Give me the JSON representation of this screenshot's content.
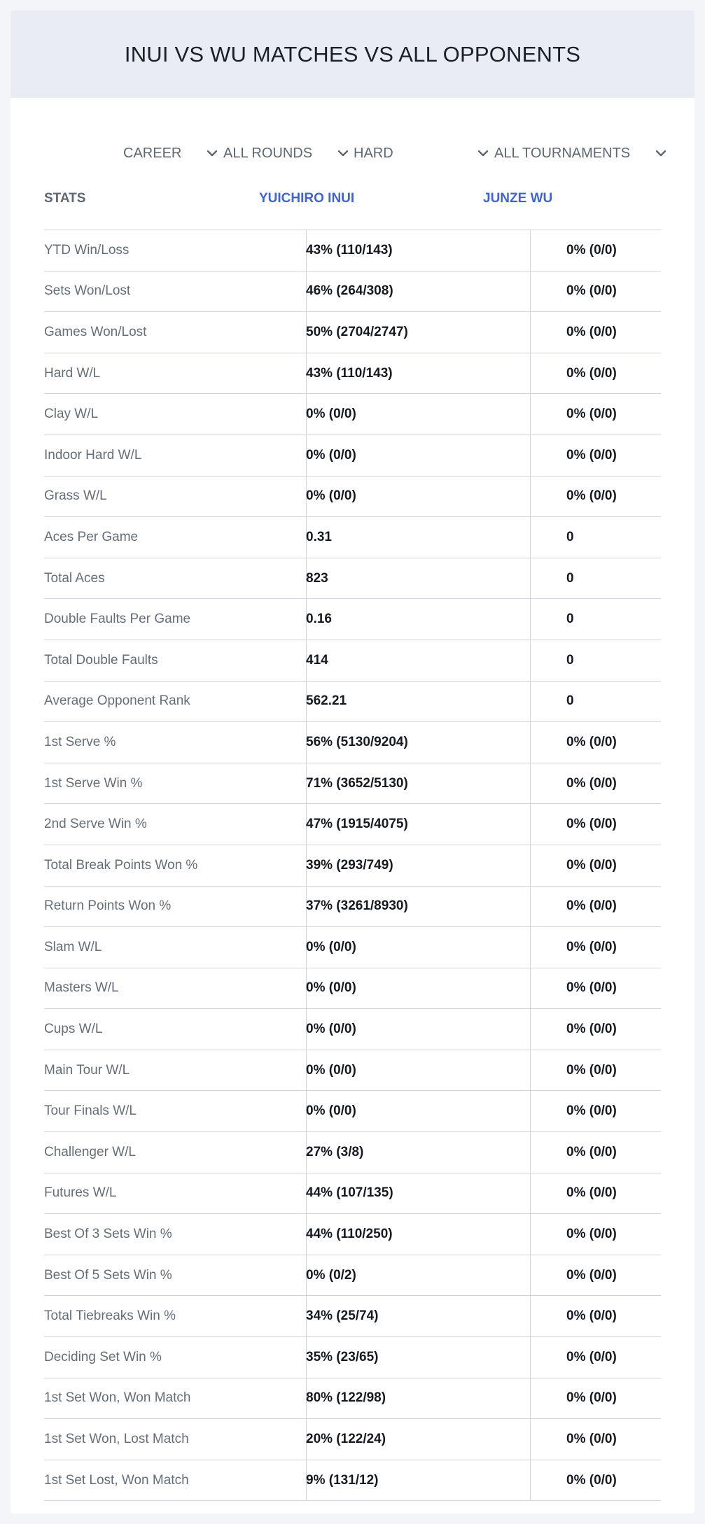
{
  "title": "INUI VS WU MATCHES VS ALL OPPONENTS",
  "filters": [
    {
      "id": "period",
      "value": "CAREER"
    },
    {
      "id": "rounds",
      "value": "ALL ROUNDS"
    },
    {
      "id": "surface",
      "value": "HARD"
    },
    {
      "id": "tournaments",
      "value": "ALL TOURNAMENTS"
    }
  ],
  "table": {
    "headers": {
      "stats": "STATS",
      "player1": "YUICHIRO INUI",
      "player2": "JUNZE WU"
    },
    "rows": [
      {
        "label": "YTD Win/Loss",
        "p1": "43% (110/143)",
        "p2": "0% (0/0)"
      },
      {
        "label": "Sets Won/Lost",
        "p1": "46% (264/308)",
        "p2": "0% (0/0)"
      },
      {
        "label": "Games Won/Lost",
        "p1": "50% (2704/2747)",
        "p2": "0% (0/0)"
      },
      {
        "label": "Hard W/L",
        "p1": "43% (110/143)",
        "p2": "0% (0/0)"
      },
      {
        "label": "Clay W/L",
        "p1": "0% (0/0)",
        "p2": "0% (0/0)"
      },
      {
        "label": "Indoor Hard W/L",
        "p1": "0% (0/0)",
        "p2": "0% (0/0)"
      },
      {
        "label": "Grass W/L",
        "p1": "0% (0/0)",
        "p2": "0% (0/0)"
      },
      {
        "label": "Aces Per Game",
        "p1": "0.31",
        "p2": "0"
      },
      {
        "label": "Total Aces",
        "p1": "823",
        "p2": "0"
      },
      {
        "label": "Double Faults Per Game",
        "p1": "0.16",
        "p2": "0"
      },
      {
        "label": "Total Double Faults",
        "p1": "414",
        "p2": "0"
      },
      {
        "label": "Average Opponent Rank",
        "p1": "562.21",
        "p2": "0"
      },
      {
        "label": "1st Serve %",
        "p1": "56% (5130/9204)",
        "p2": "0% (0/0)"
      },
      {
        "label": "1st Serve Win %",
        "p1": "71% (3652/5130)",
        "p2": "0% (0/0)"
      },
      {
        "label": "2nd Serve Win %",
        "p1": "47% (1915/4075)",
        "p2": "0% (0/0)"
      },
      {
        "label": "Total Break Points Won %",
        "p1": "39% (293/749)",
        "p2": "0% (0/0)"
      },
      {
        "label": "Return Points Won %",
        "p1": "37% (3261/8930)",
        "p2": "0% (0/0)"
      },
      {
        "label": "Slam W/L",
        "p1": "0% (0/0)",
        "p2": "0% (0/0)"
      },
      {
        "label": "Masters W/L",
        "p1": "0% (0/0)",
        "p2": "0% (0/0)"
      },
      {
        "label": "Cups W/L",
        "p1": "0% (0/0)",
        "p2": "0% (0/0)"
      },
      {
        "label": "Main Tour W/L",
        "p1": "0% (0/0)",
        "p2": "0% (0/0)"
      },
      {
        "label": "Tour Finals W/L",
        "p1": "0% (0/0)",
        "p2": "0% (0/0)"
      },
      {
        "label": "Challenger W/L",
        "p1": "27% (3/8)",
        "p2": "0% (0/0)"
      },
      {
        "label": "Futures W/L",
        "p1": "44% (107/135)",
        "p2": "0% (0/0)"
      },
      {
        "label": "Best Of 3 Sets Win %",
        "p1": "44% (110/250)",
        "p2": "0% (0/0)"
      },
      {
        "label": "Best Of 5 Sets Win %",
        "p1": "0% (0/2)",
        "p2": "0% (0/0)"
      },
      {
        "label": "Total Tiebreaks Win %",
        "p1": "34% (25/74)",
        "p2": "0% (0/0)"
      },
      {
        "label": "Deciding Set Win %",
        "p1": "35% (23/65)",
        "p2": "0% (0/0)"
      },
      {
        "label": "1st Set Won, Won Match",
        "p1": "80% (122/98)",
        "p2": "0% (0/0)"
      },
      {
        "label": "1st Set Won, Lost Match",
        "p1": "20% (122/24)",
        "p2": "0% (0/0)"
      },
      {
        "label": "1st Set Lost, Won Match",
        "p1": "9% (131/12)",
        "p2": "0% (0/0)"
      }
    ]
  },
  "icons": {
    "dropdown": "chevron-down-icon"
  },
  "colors": {
    "accent": "#3f63d6",
    "header_bg": "#e9edf3",
    "page_bg": "#f3f5f8"
  }
}
